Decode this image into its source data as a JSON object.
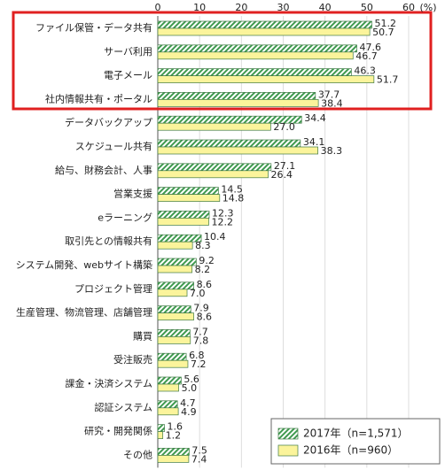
{
  "chart_data": {
    "type": "hbar-grouped",
    "unit_label": "(%)",
    "categories": [
      "ファイル保管・データ共有",
      "サーバ利用",
      "電子メール",
      "社内情報共有・ポータル",
      "データバックアップ",
      "スケジュール共有",
      "給与、財務会計、人事",
      "営業支援",
      "eラーニング",
      "取引先との情報共有",
      "システム開発、webサイト構築",
      "プロジェクト管理",
      "生産管理、物流管理、店舗管理",
      "購買",
      "受注販売",
      "課金・決済システム",
      "認証システム",
      "研究・開発関係",
      "その他"
    ],
    "series": [
      {
        "name": "2017年（n=1,571）",
        "color": "#3f9a4f",
        "hatch": true,
        "values": [
          51.2,
          47.6,
          46.3,
          37.7,
          34.4,
          34.1,
          27.1,
          14.5,
          12.3,
          10.4,
          9.2,
          8.6,
          7.9,
          7.7,
          6.8,
          5.6,
          4.7,
          1.6,
          7.5
        ],
        "value_labels": [
          "51.2",
          "47.6",
          "46.3",
          "37.7",
          "34.4",
          "34.1",
          "27.1",
          "14.5",
          "12.3",
          "10.4",
          "9.2",
          "8.6",
          "7.9",
          "7.7",
          "6.8",
          "5.6",
          "4.7",
          "1.6",
          "7.5"
        ]
      },
      {
        "name": "2016年（n=960）",
        "color": "#fbf49b",
        "hatch": false,
        "values": [
          50.7,
          46.7,
          51.7,
          38.4,
          27.0,
          38.3,
          26.4,
          14.8,
          12.2,
          8.3,
          8.2,
          7.0,
          8.6,
          7.8,
          7.2,
          5.0,
          4.9,
          1.2,
          7.4
        ],
        "value_labels": [
          "50.7",
          "46.7",
          "51.7",
          "38.4",
          "27.0",
          "38.3",
          "26.4",
          "14.8",
          "12.2",
          "8.3",
          "8.2",
          "7.0",
          "8.6",
          "7.8",
          "7.2",
          "5.0",
          "4.9",
          "1.2",
          "7.4"
        ]
      }
    ],
    "xlim": [
      0,
      60
    ],
    "xticks": [
      0,
      10,
      20,
      30,
      40,
      50,
      60
    ],
    "grid": true
  }
}
